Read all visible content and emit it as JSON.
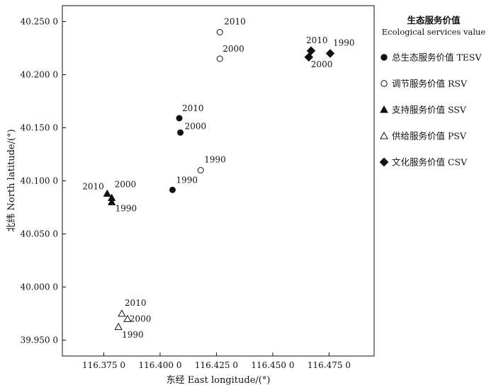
{
  "chart_data": {
    "type": "scatter",
    "xlabel": "东经 East longitude/(°)",
    "ylabel": "北纬 North latitude/(°)",
    "xlim": [
      116.3566,
      116.495
    ],
    "ylim": [
      39.935,
      40.265
    ],
    "x_ticks": [
      {
        "value": 116.375,
        "label": "116.375 0"
      },
      {
        "value": 116.4,
        "label": "116.400 0"
      },
      {
        "value": 116.425,
        "label": "116.425 0"
      },
      {
        "value": 116.45,
        "label": "116.450 0"
      },
      {
        "value": 116.475,
        "label": "116.475 0"
      }
    ],
    "y_ticks": [
      {
        "value": 39.95,
        "label": "39.950 0"
      },
      {
        "value": 40.0,
        "label": "40.000 0"
      },
      {
        "value": 40.05,
        "label": "40.050 0"
      },
      {
        "value": 40.1,
        "label": "40.100 0"
      },
      {
        "value": 40.15,
        "label": "40.150 0"
      },
      {
        "value": 40.2,
        "label": "40.200 0"
      },
      {
        "value": 40.25,
        "label": "40.250 0"
      }
    ],
    "legend_title": "生态服务价值",
    "legend_subtitle": "Ecological services value",
    "legend_placement": "right",
    "grid": false,
    "series": [
      {
        "name": "总生态服务价值 TESV",
        "marker": "circle-filled",
        "points": [
          {
            "x": 116.4055,
            "y": 40.0915,
            "label": "1990",
            "dx": 5,
            "dy": -10
          },
          {
            "x": 116.409,
            "y": 40.1455,
            "label": "2000",
            "dx": 6,
            "dy": -5
          },
          {
            "x": 116.4085,
            "y": 40.159,
            "label": "2010",
            "dx": 4,
            "dy": -10
          }
        ]
      },
      {
        "name": "调节服务价值 RSV",
        "marker": "circle-open",
        "points": [
          {
            "x": 116.418,
            "y": 40.11,
            "label": "1990",
            "dx": 5,
            "dy": -11
          },
          {
            "x": 116.4265,
            "y": 40.215,
            "label": "2000",
            "dx": 4,
            "dy": -10
          },
          {
            "x": 116.4265,
            "y": 40.24,
            "label": "2010",
            "dx": 6,
            "dy": -11
          }
        ]
      },
      {
        "name": "支持服务价值 SSV",
        "marker": "triangle-filled",
        "points": [
          {
            "x": 116.3785,
            "y": 40.08,
            "label": "1990",
            "dx": 5,
            "dy": 13
          },
          {
            "x": 116.3785,
            "y": 40.084,
            "label": "2000",
            "dx": 4,
            "dy": -15
          },
          {
            "x": 116.3765,
            "y": 40.088,
            "label": "2010",
            "dx": -35,
            "dy": -6
          }
        ]
      },
      {
        "name": "供给服务价值 PSV",
        "marker": "triangle-open",
        "points": [
          {
            "x": 116.3815,
            "y": 39.9625,
            "label": "1990",
            "dx": 5,
            "dy": 15
          },
          {
            "x": 116.3855,
            "y": 39.97,
            "label": "2000",
            "dx": 3,
            "dy": 4
          },
          {
            "x": 116.383,
            "y": 39.975,
            "label": "2010",
            "dx": 4,
            "dy": -11
          }
        ]
      },
      {
        "name": "文化服务价值 CSV",
        "marker": "diamond-filled",
        "points": [
          {
            "x": 116.4755,
            "y": 40.22,
            "label": "1990",
            "dx": 4,
            "dy": -11
          },
          {
            "x": 116.466,
            "y": 40.2165,
            "label": "2000",
            "dx": 3,
            "dy": 14
          },
          {
            "x": 116.467,
            "y": 40.2225,
            "label": "2010",
            "dx": -7,
            "dy": -11
          }
        ]
      }
    ]
  }
}
